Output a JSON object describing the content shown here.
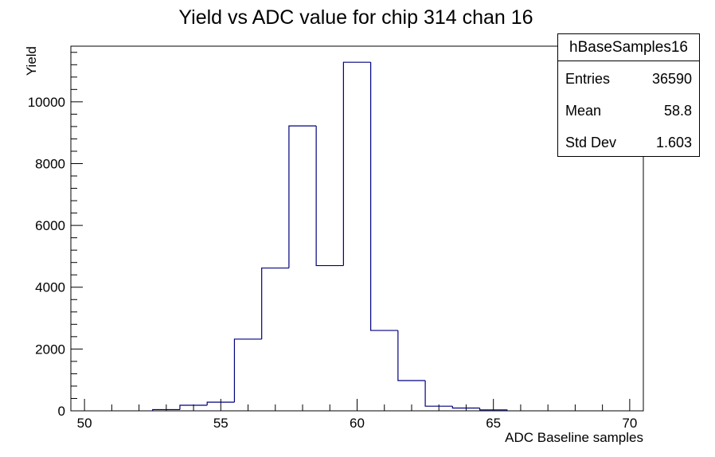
{
  "chart_data": {
    "type": "histogram",
    "title": "Yield vs ADC value for chip 314 chan 16",
    "xlabel": "ADC Baseline samples",
    "ylabel": "Yield",
    "xlim": [
      49.5,
      70.5
    ],
    "ylim": [
      0,
      11800
    ],
    "x_ticks": [
      50,
      55,
      60,
      65,
      70
    ],
    "y_ticks": [
      0,
      2000,
      4000,
      6000,
      8000,
      10000
    ],
    "bin_edges": [
      52.5,
      53.5,
      54.5,
      55.5,
      56.5,
      57.5,
      58.5,
      59.5,
      60.5,
      61.5,
      62.5,
      63.5,
      64.5,
      65.5
    ],
    "values": [
      40,
      180,
      280,
      2320,
      4620,
      9220,
      4700,
      11280,
      2600,
      980,
      150,
      90,
      30
    ],
    "line_color": "#00007f",
    "grid": false
  },
  "stats_box": {
    "name": "hBaseSamples16",
    "rows": [
      {
        "key": "Entries",
        "value": "36590"
      },
      {
        "key": "Mean",
        "value": "58.8"
      },
      {
        "key": "Std Dev",
        "value": "1.603"
      }
    ]
  }
}
